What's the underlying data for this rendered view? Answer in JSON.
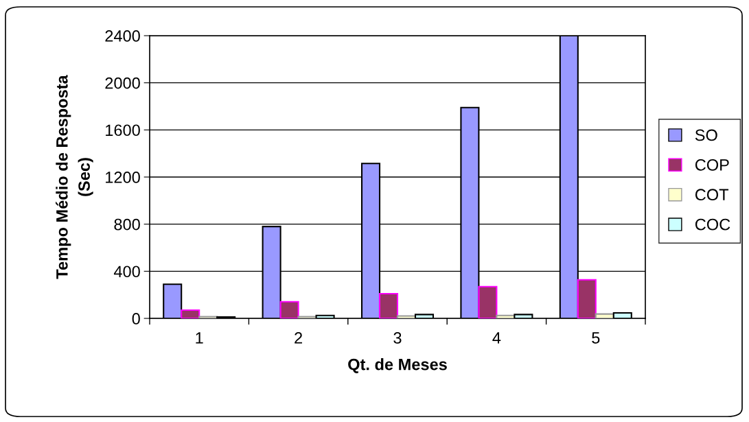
{
  "chart_data": {
    "type": "bar",
    "xlabel": "Qt. de Meses",
    "ylabel": "Tempo Médio de Resposta\n(Sec)",
    "categories": [
      "1",
      "2",
      "3",
      "4",
      "5"
    ],
    "series": [
      {
        "name": "SO",
        "color": "#9999ff",
        "values": [
          290,
          780,
          1315,
          1790,
          2400
        ]
      },
      {
        "name": "COP",
        "color": "#993366",
        "values": [
          70,
          141,
          210,
          269,
          328
        ]
      },
      {
        "name": "COT",
        "color": "#ffffcc",
        "values": [
          15,
          15,
          20,
          25,
          37
        ]
      },
      {
        "name": "COC",
        "color": "#ccffff",
        "values": [
          12,
          25,
          33,
          33,
          47
        ]
      }
    ],
    "ylim": [
      0,
      2400
    ],
    "yticks": [
      0,
      400,
      800,
      1200,
      1600,
      2000,
      2400
    ],
    "grid": "y",
    "legend": "right"
  }
}
